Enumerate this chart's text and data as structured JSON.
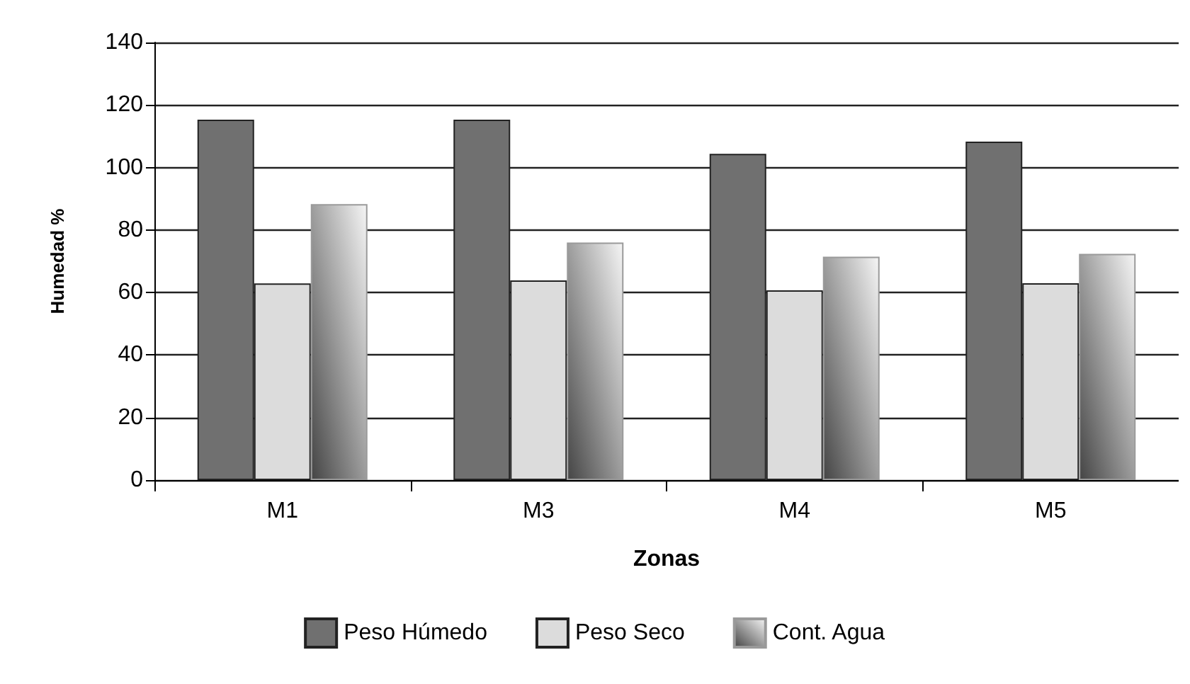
{
  "chart_data": {
    "type": "bar",
    "xlabel": "Zonas",
    "ylabel": "Humedad %",
    "categories": [
      "M1",
      "M3",
      "M4",
      "M5"
    ],
    "series": [
      {
        "name": "Peso Húmedo",
        "color": "#707070",
        "values": [
          115.3,
          115.3,
          104.4,
          108.3
        ]
      },
      {
        "name": "Peso Seco",
        "color": "#dcdcdc",
        "values": [
          62.9,
          63.9,
          60.7,
          63.0
        ]
      },
      {
        "name": "Cont. Agua",
        "color": "#9a9a9a",
        "values": [
          88.3,
          76.0,
          71.5,
          72.4
        ]
      }
    ],
    "ylim": [
      0,
      140
    ],
    "yticks": [
      0,
      20,
      40,
      60,
      80,
      100,
      120,
      140
    ],
    "grid": "y",
    "legend": "bottom"
  }
}
